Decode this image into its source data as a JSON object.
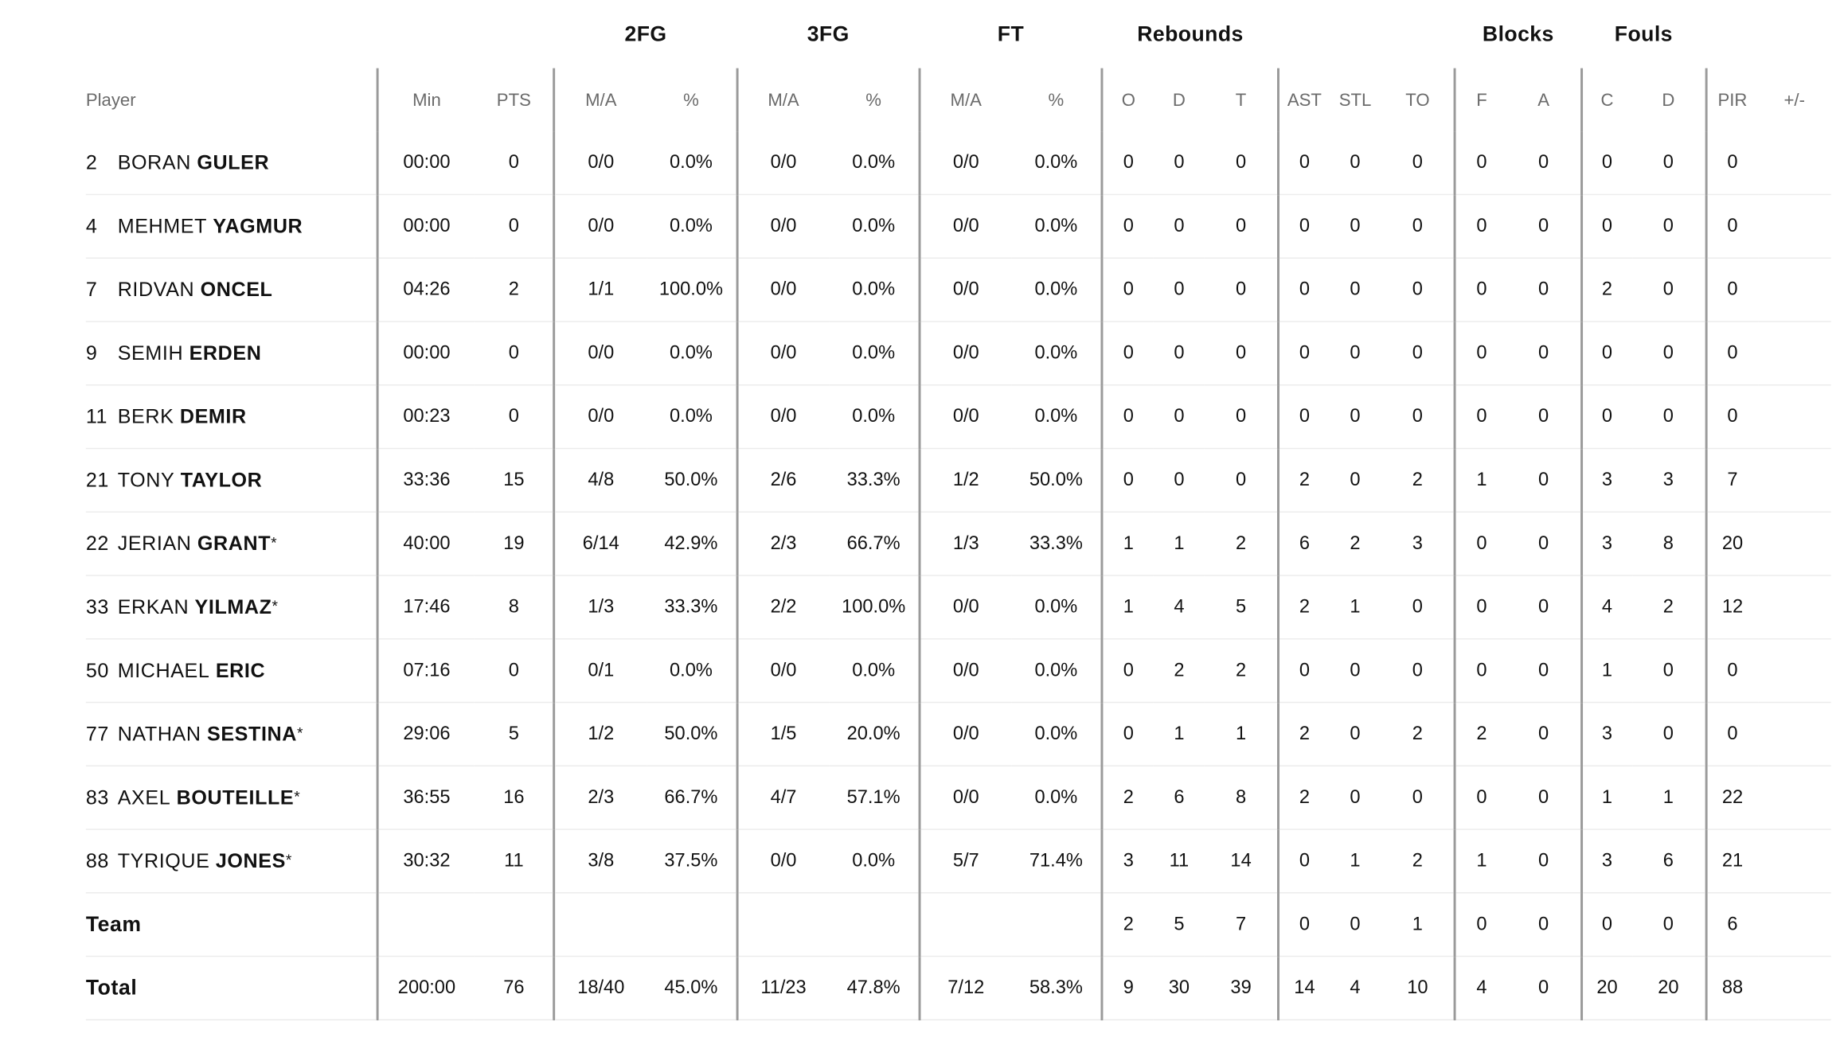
{
  "groups": {
    "twofg": "2FG",
    "threefg": "3FG",
    "ft": "FT",
    "rebounds": "Rebounds",
    "blocks": "Blocks",
    "fouls": "Fouls"
  },
  "columns": {
    "player": "Player",
    "min": "Min",
    "pts": "PTS",
    "twofg_ma": "M/A",
    "twofg_pct": "%",
    "threefg_ma": "M/A",
    "threefg_pct": "%",
    "ft_ma": "M/A",
    "ft_pct": "%",
    "reb_o": "O",
    "reb_d": "D",
    "reb_t": "T",
    "ast": "AST",
    "stl": "STL",
    "to": "TO",
    "blk_f": "F",
    "blk_a": "A",
    "foul_c": "C",
    "foul_d": "D",
    "pir": "PIR",
    "pm": "+/-"
  },
  "players": [
    {
      "num": "2",
      "first": "BORAN",
      "last": "GULER",
      "starter": "",
      "min": "00:00",
      "pts": "0",
      "twofg_ma": "0/0",
      "twofg_pct": "0.0%",
      "threefg_ma": "0/0",
      "threefg_pct": "0.0%",
      "ft_ma": "0/0",
      "ft_pct": "0.0%",
      "reb_o": "0",
      "reb_d": "0",
      "reb_t": "0",
      "ast": "0",
      "stl": "0",
      "to": "0",
      "blk_f": "0",
      "blk_a": "0",
      "foul_c": "0",
      "foul_d": "0",
      "pir": "0",
      "pm": ""
    },
    {
      "num": "4",
      "first": "MEHMET",
      "last": "YAGMUR",
      "starter": "",
      "min": "00:00",
      "pts": "0",
      "twofg_ma": "0/0",
      "twofg_pct": "0.0%",
      "threefg_ma": "0/0",
      "threefg_pct": "0.0%",
      "ft_ma": "0/0",
      "ft_pct": "0.0%",
      "reb_o": "0",
      "reb_d": "0",
      "reb_t": "0",
      "ast": "0",
      "stl": "0",
      "to": "0",
      "blk_f": "0",
      "blk_a": "0",
      "foul_c": "0",
      "foul_d": "0",
      "pir": "0",
      "pm": ""
    },
    {
      "num": "7",
      "first": "RIDVAN",
      "last": "ONCEL",
      "starter": "",
      "min": "04:26",
      "pts": "2",
      "twofg_ma": "1/1",
      "twofg_pct": "100.0%",
      "threefg_ma": "0/0",
      "threefg_pct": "0.0%",
      "ft_ma": "0/0",
      "ft_pct": "0.0%",
      "reb_o": "0",
      "reb_d": "0",
      "reb_t": "0",
      "ast": "0",
      "stl": "0",
      "to": "0",
      "blk_f": "0",
      "blk_a": "0",
      "foul_c": "2",
      "foul_d": "0",
      "pir": "0",
      "pm": ""
    },
    {
      "num": "9",
      "first": "SEMIH",
      "last": "ERDEN",
      "starter": "",
      "min": "00:00",
      "pts": "0",
      "twofg_ma": "0/0",
      "twofg_pct": "0.0%",
      "threefg_ma": "0/0",
      "threefg_pct": "0.0%",
      "ft_ma": "0/0",
      "ft_pct": "0.0%",
      "reb_o": "0",
      "reb_d": "0",
      "reb_t": "0",
      "ast": "0",
      "stl": "0",
      "to": "0",
      "blk_f": "0",
      "blk_a": "0",
      "foul_c": "0",
      "foul_d": "0",
      "pir": "0",
      "pm": ""
    },
    {
      "num": "11",
      "first": "BERK",
      "last": "DEMIR",
      "starter": "",
      "min": "00:23",
      "pts": "0",
      "twofg_ma": "0/0",
      "twofg_pct": "0.0%",
      "threefg_ma": "0/0",
      "threefg_pct": "0.0%",
      "ft_ma": "0/0",
      "ft_pct": "0.0%",
      "reb_o": "0",
      "reb_d": "0",
      "reb_t": "0",
      "ast": "0",
      "stl": "0",
      "to": "0",
      "blk_f": "0",
      "blk_a": "0",
      "foul_c": "0",
      "foul_d": "0",
      "pir": "0",
      "pm": ""
    },
    {
      "num": "21",
      "first": "TONY",
      "last": "TAYLOR",
      "starter": "",
      "min": "33:36",
      "pts": "15",
      "twofg_ma": "4/8",
      "twofg_pct": "50.0%",
      "threefg_ma": "2/6",
      "threefg_pct": "33.3%",
      "ft_ma": "1/2",
      "ft_pct": "50.0%",
      "reb_o": "0",
      "reb_d": "0",
      "reb_t": "0",
      "ast": "2",
      "stl": "0",
      "to": "2",
      "blk_f": "1",
      "blk_a": "0",
      "foul_c": "3",
      "foul_d": "3",
      "pir": "7",
      "pm": ""
    },
    {
      "num": "22",
      "first": "JERIAN",
      "last": "GRANT",
      "starter": "*",
      "min": "40:00",
      "pts": "19",
      "twofg_ma": "6/14",
      "twofg_pct": "42.9%",
      "threefg_ma": "2/3",
      "threefg_pct": "66.7%",
      "ft_ma": "1/3",
      "ft_pct": "33.3%",
      "reb_o": "1",
      "reb_d": "1",
      "reb_t": "2",
      "ast": "6",
      "stl": "2",
      "to": "3",
      "blk_f": "0",
      "blk_a": "0",
      "foul_c": "3",
      "foul_d": "8",
      "pir": "20",
      "pm": ""
    },
    {
      "num": "33",
      "first": "ERKAN",
      "last": "YILMAZ",
      "starter": "*",
      "min": "17:46",
      "pts": "8",
      "twofg_ma": "1/3",
      "twofg_pct": "33.3%",
      "threefg_ma": "2/2",
      "threefg_pct": "100.0%",
      "ft_ma": "0/0",
      "ft_pct": "0.0%",
      "reb_o": "1",
      "reb_d": "4",
      "reb_t": "5",
      "ast": "2",
      "stl": "1",
      "to": "0",
      "blk_f": "0",
      "blk_a": "0",
      "foul_c": "4",
      "foul_d": "2",
      "pir": "12",
      "pm": ""
    },
    {
      "num": "50",
      "first": "MICHAEL",
      "last": "ERIC",
      "starter": "",
      "min": "07:16",
      "pts": "0",
      "twofg_ma": "0/1",
      "twofg_pct": "0.0%",
      "threefg_ma": "0/0",
      "threefg_pct": "0.0%",
      "ft_ma": "0/0",
      "ft_pct": "0.0%",
      "reb_o": "0",
      "reb_d": "2",
      "reb_t": "2",
      "ast": "0",
      "stl": "0",
      "to": "0",
      "blk_f": "0",
      "blk_a": "0",
      "foul_c": "1",
      "foul_d": "0",
      "pir": "0",
      "pm": ""
    },
    {
      "num": "77",
      "first": "NATHAN",
      "last": "SESTINA",
      "starter": "*",
      "min": "29:06",
      "pts": "5",
      "twofg_ma": "1/2",
      "twofg_pct": "50.0%",
      "threefg_ma": "1/5",
      "threefg_pct": "20.0%",
      "ft_ma": "0/0",
      "ft_pct": "0.0%",
      "reb_o": "0",
      "reb_d": "1",
      "reb_t": "1",
      "ast": "2",
      "stl": "0",
      "to": "2",
      "blk_f": "2",
      "blk_a": "0",
      "foul_c": "3",
      "foul_d": "0",
      "pir": "0",
      "pm": ""
    },
    {
      "num": "83",
      "first": "AXEL",
      "last": "BOUTEILLE",
      "starter": "*",
      "min": "36:55",
      "pts": "16",
      "twofg_ma": "2/3",
      "twofg_pct": "66.7%",
      "threefg_ma": "4/7",
      "threefg_pct": "57.1%",
      "ft_ma": "0/0",
      "ft_pct": "0.0%",
      "reb_o": "2",
      "reb_d": "6",
      "reb_t": "8",
      "ast": "2",
      "stl": "0",
      "to": "0",
      "blk_f": "0",
      "blk_a": "0",
      "foul_c": "1",
      "foul_d": "1",
      "pir": "22",
      "pm": ""
    },
    {
      "num": "88",
      "first": "TYRIQUE",
      "last": "JONES",
      "starter": "*",
      "min": "30:32",
      "pts": "11",
      "twofg_ma": "3/8",
      "twofg_pct": "37.5%",
      "threefg_ma": "0/0",
      "threefg_pct": "0.0%",
      "ft_ma": "5/7",
      "ft_pct": "71.4%",
      "reb_o": "3",
      "reb_d": "11",
      "reb_t": "14",
      "ast": "0",
      "stl": "1",
      "to": "2",
      "blk_f": "1",
      "blk_a": "0",
      "foul_c": "3",
      "foul_d": "6",
      "pir": "21",
      "pm": ""
    }
  ],
  "team": {
    "label": "Team",
    "reb_o": "2",
    "reb_d": "5",
    "reb_t": "7",
    "ast": "0",
    "stl": "0",
    "to": "1",
    "blk_f": "0",
    "blk_a": "0",
    "foul_c": "0",
    "foul_d": "0",
    "pir": "6"
  },
  "total": {
    "label": "Total",
    "min": "200:00",
    "pts": "76",
    "twofg_ma": "18/40",
    "twofg_pct": "45.0%",
    "threefg_ma": "11/23",
    "threefg_pct": "47.8%",
    "ft_ma": "7/12",
    "ft_pct": "58.3%",
    "reb_o": "9",
    "reb_d": "30",
    "reb_t": "39",
    "ast": "14",
    "stl": "4",
    "to": "10",
    "blk_f": "4",
    "blk_a": "0",
    "foul_c": "20",
    "foul_d": "20",
    "pir": "88"
  }
}
